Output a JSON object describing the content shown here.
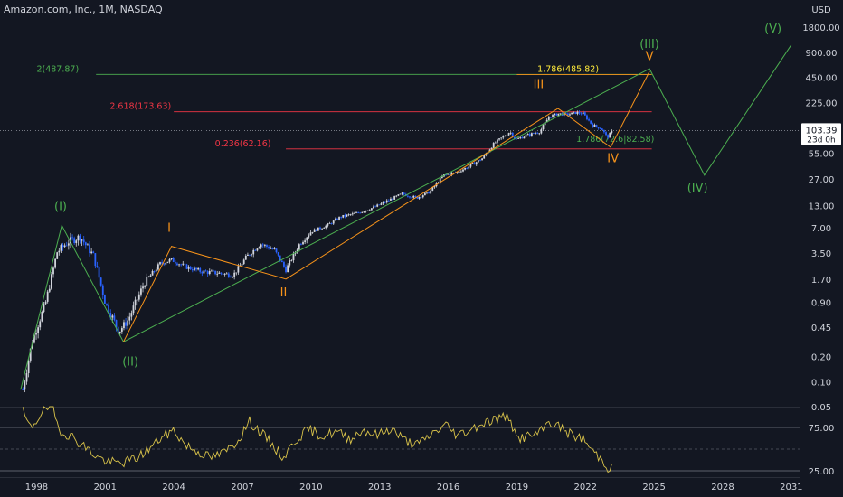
{
  "header": {
    "title": "Amazon.com, Inc., 1M, NASDAQ",
    "currency": "USD"
  },
  "colors": {
    "bg": "#131722",
    "up": "#d1d4dc",
    "down": "#2962ff",
    "green": "#4caf50",
    "orange": "#f7931a",
    "red": "#f23645",
    "yellow": "#ffeb3b",
    "rsi": "#d9c34a",
    "text": "#d1d4dc",
    "muted": "#787b86"
  },
  "chart_data": {
    "type": "candlestick",
    "y_scale": "log",
    "ylim": [
      0.05,
      2200
    ],
    "xlim": [
      1996.4,
      2031.6
    ],
    "x_ticks": [
      "1998",
      "2001",
      "2004",
      "2007",
      "2010",
      "2013",
      "2016",
      "2019",
      "2022",
      "2025",
      "2028",
      "2031"
    ],
    "x_tick_values": [
      1998,
      2001,
      2004,
      2007,
      2010,
      2013,
      2016,
      2019,
      2022,
      2025,
      2028,
      2031
    ],
    "y_ticks": [
      "1800.00",
      "900.00",
      "450.00",
      "225.00",
      "55.00",
      "27.00",
      "13.00",
      "7.00",
      "3.50",
      "1.70",
      "0.90",
      "0.45",
      "0.20",
      "0.10",
      "0.05"
    ],
    "y_tick_values": [
      1800,
      900,
      450,
      225,
      55,
      27,
      13,
      7,
      3.5,
      1.7,
      0.9,
      0.45,
      0.2,
      0.1,
      0.05
    ],
    "last_price": {
      "value": 103.39,
      "label": "103.39",
      "countdown": "23d 0h"
    },
    "price_anchors": [
      [
        1997.4,
        0.08
      ],
      [
        1997.8,
        0.3
      ],
      [
        1998.4,
        0.9
      ],
      [
        1998.9,
        3.6
      ],
      [
        1999.4,
        4.8
      ],
      [
        1999.9,
        5.5
      ],
      [
        2000.5,
        3.2
      ],
      [
        2001.0,
        0.9
      ],
      [
        2001.6,
        0.4
      ],
      [
        2002.0,
        0.55
      ],
      [
        2002.7,
        1.5
      ],
      [
        2003.4,
        2.6
      ],
      [
        2003.9,
        2.9
      ],
      [
        2004.5,
        2.4
      ],
      [
        2005.2,
        2.1
      ],
      [
        2006.0,
        2.0
      ],
      [
        2006.6,
        1.9
      ],
      [
        2007.2,
        3.2
      ],
      [
        2007.8,
        4.5
      ],
      [
        2008.4,
        3.8
      ],
      [
        2008.9,
        2.2
      ],
      [
        2009.5,
        4.5
      ],
      [
        2010.0,
        6.3
      ],
      [
        2010.7,
        7.5
      ],
      [
        2011.3,
        9.5
      ],
      [
        2012.0,
        10.5
      ],
      [
        2012.8,
        12.5
      ],
      [
        2013.5,
        15.5
      ],
      [
        2014.0,
        18
      ],
      [
        2014.6,
        16
      ],
      [
        2015.2,
        19
      ],
      [
        2015.8,
        30
      ],
      [
        2016.3,
        32
      ],
      [
        2016.9,
        38
      ],
      [
        2017.5,
        48
      ],
      [
        2018.0,
        72
      ],
      [
        2018.7,
        100
      ],
      [
        2018.95,
        80
      ],
      [
        2019.4,
        90
      ],
      [
        2020.0,
        100
      ],
      [
        2020.4,
        150
      ],
      [
        2020.8,
        165
      ],
      [
        2021.2,
        160
      ],
      [
        2021.6,
        170
      ],
      [
        2021.9,
        165
      ],
      [
        2022.3,
        120
      ],
      [
        2022.7,
        110
      ],
      [
        2022.95,
        85
      ],
      [
        2023.2,
        103.39
      ]
    ],
    "waves": [
      {
        "name": "primary",
        "color": "green",
        "points": [
          [
            1997.3,
            0.08
          ],
          [
            1999.1,
            7.5
          ],
          [
            2001.8,
            0.3
          ],
          [
            2024.8,
            570
          ],
          [
            2027.2,
            30
          ],
          [
            2031.0,
            1100
          ]
        ]
      },
      {
        "name": "intermediate",
        "color": "orange",
        "points": [
          [
            2001.8,
            0.3
          ],
          [
            2003.9,
            4.2
          ],
          [
            2008.9,
            1.7
          ],
          [
            2020.8,
            190
          ],
          [
            2023.1,
            65
          ],
          [
            2024.8,
            530
          ]
        ]
      }
    ],
    "wave_labels": [
      {
        "text": "(I)",
        "x": 1999.05,
        "y": 11.5,
        "color": "green"
      },
      {
        "text": "(II)",
        "x": 2002.1,
        "y": 0.155,
        "color": "green"
      },
      {
        "text": "(III)",
        "x": 2024.8,
        "y": 1020,
        "color": "green"
      },
      {
        "text": "(IV)",
        "x": 2026.9,
        "y": 19,
        "color": "green"
      },
      {
        "text": "(V)",
        "x": 2030.2,
        "y": 1550,
        "color": "green"
      },
      {
        "text": "I",
        "x": 2003.8,
        "y": 6.3,
        "color": "orange"
      },
      {
        "text": "II",
        "x": 2008.8,
        "y": 1.05,
        "color": "orange"
      },
      {
        "text": "III",
        "x": 2019.95,
        "y": 335,
        "color": "orange"
      },
      {
        "text": "IV",
        "x": 2023.2,
        "y": 43,
        "color": "orange"
      },
      {
        "text": "V",
        "x": 2024.8,
        "y": 720,
        "color": "orange"
      }
    ],
    "levels": [
      {
        "label": "2(487.87)",
        "value": 487.87,
        "x0": 2000.6,
        "x1": 2024.9,
        "color": "green",
        "label_x": 1998.0,
        "label_color": "green"
      },
      {
        "label": "1.786(485.82)",
        "value": 485.82,
        "x0": 2019.0,
        "x1": 2024.9,
        "color": "orange",
        "label_x": 2019.9,
        "label_color": "yellow"
      },
      {
        "label": "2.618(173.63)",
        "value": 173.63,
        "x0": 2004.0,
        "x1": 2024.9,
        "color": "red",
        "label_x": 2001.2,
        "label_color": "red"
      },
      {
        "label": "0.236(62.16)",
        "value": 62.16,
        "x0": 2008.9,
        "x1": 2024.9,
        "color": "red",
        "label_x": 2005.8,
        "label_color": "red"
      },
      {
        "label": "1.786(72.6|82.58)",
        "value": 70,
        "x0": 2019.0,
        "x1": 2024.9,
        "color": "none",
        "label_x": 2021.6,
        "label_color": "green"
      }
    ],
    "rsi": {
      "y_ticks": [
        "75.00",
        "25.00"
      ],
      "y_tick_values": [
        75,
        25
      ],
      "anchors": [
        [
          1997.4,
          93
        ],
        [
          1997.7,
          74
        ],
        [
          1998.0,
          83
        ],
        [
          1998.3,
          97
        ],
        [
          1998.7,
          96
        ],
        [
          1999.0,
          72
        ],
        [
          1999.5,
          65
        ],
        [
          2000.0,
          55
        ],
        [
          2000.6,
          42
        ],
        [
          2001.1,
          35
        ],
        [
          2001.7,
          34
        ],
        [
          2002.4,
          40
        ],
        [
          2003.0,
          52
        ],
        [
          2003.4,
          62
        ],
        [
          2004.0,
          72
        ],
        [
          2004.5,
          55
        ],
        [
          2005.0,
          48
        ],
        [
          2005.6,
          40
        ],
        [
          2006.2,
          46
        ],
        [
          2006.8,
          60
        ],
        [
          2007.3,
          82
        ],
        [
          2007.7,
          72
        ],
        [
          2008.2,
          58
        ],
        [
          2008.8,
          40
        ],
        [
          2009.3,
          60
        ],
        [
          2009.9,
          73
        ],
        [
          2010.5,
          65
        ],
        [
          2011.1,
          70
        ],
        [
          2011.7,
          62
        ],
        [
          2012.3,
          72
        ],
        [
          2012.9,
          66
        ],
        [
          2013.5,
          74
        ],
        [
          2014.1,
          60
        ],
        [
          2014.7,
          55
        ],
        [
          2015.3,
          68
        ],
        [
          2015.9,
          78
        ],
        [
          2016.4,
          66
        ],
        [
          2016.9,
          72
        ],
        [
          2017.5,
          80
        ],
        [
          2018.1,
          85
        ],
        [
          2018.7,
          88
        ],
        [
          2018.95,
          62
        ],
        [
          2019.5,
          65
        ],
        [
          2020.0,
          68
        ],
        [
          2020.4,
          82
        ],
        [
          2020.9,
          75
        ],
        [
          2021.4,
          66
        ],
        [
          2021.9,
          62
        ],
        [
          2022.3,
          48
        ],
        [
          2022.8,
          36
        ],
        [
          2023.0,
          28
        ],
        [
          2023.2,
          33
        ]
      ]
    }
  }
}
